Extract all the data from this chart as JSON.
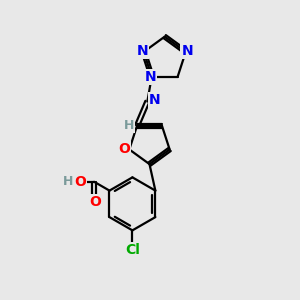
{
  "background_color": "#e8e8e8",
  "bond_color": "#000000",
  "atom_colors": {
    "N": "#0000ee",
    "O": "#ff0000",
    "Cl": "#00aa00",
    "H": "#7a9a9a",
    "C": "#000000"
  },
  "figsize": [
    3.0,
    3.0
  ],
  "dpi": 100
}
